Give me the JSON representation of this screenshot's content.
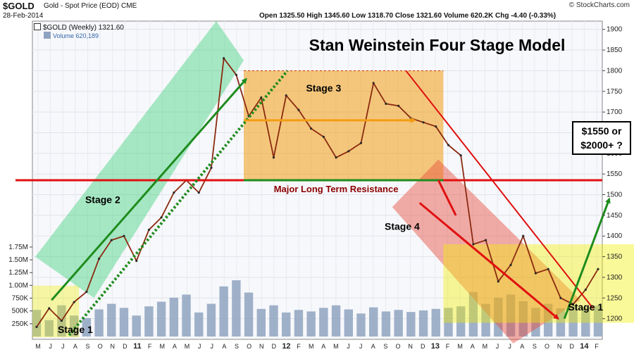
{
  "header": {
    "symbol": "$GOLD",
    "description": "Gold - Spot Price (EOD)  CME",
    "date": "28-Feb-2014",
    "ohlc": "Open 1325.50  High 1345.60  Low 1318.70  Close 1321.60  Volume 620.2K  Chg -4.40 (-0.33%)",
    "credit": "© StockCharts.com",
    "legend_price": "$GOLD (Weekly) 1321.60",
    "legend_volume": "Volume 620,189"
  },
  "colors": {
    "stage_green": "#2ecc71",
    "stage_orange": "#f39c12",
    "stage_red": "#e74c3c",
    "stage_yellow": "#f2f000",
    "resistance": "#e01010",
    "arrow_green": "#1e8c1e",
    "volume": "#8fa3c0"
  },
  "chart_data": {
    "type": "line",
    "title": "Stan Weinstein Four Stage Model",
    "xlabel": "",
    "ylabel": "",
    "ylim": [
      1150,
      1920
    ],
    "volume_ylim": [
      0,
      1900
    ],
    "y_ticks": [
      1200,
      1250,
      1300,
      1350,
      1400,
      1450,
      1500,
      1550,
      1600,
      1650,
      1700,
      1750,
      1800,
      1850,
      1900
    ],
    "y_tick_labels": [
      "1200",
      "1250",
      "1300",
      "1350",
      "1400",
      "1450",
      "1500",
      "1550",
      "1600",
      "1650",
      "1700",
      "1750",
      "1800",
      "1850",
      "1900"
    ],
    "volume_ticks": [
      250,
      500,
      750,
      1000,
      1250,
      1500,
      1750
    ],
    "volume_tick_labels": [
      "250K",
      "500K",
      "750K",
      "1.00M",
      "1.25M",
      "1.50M",
      "1.75M"
    ],
    "x_ticks": [
      "M",
      "J",
      "J",
      "A",
      "S",
      "O",
      "N",
      "D",
      "11",
      "F",
      "M",
      "A",
      "M",
      "J",
      "J",
      "A",
      "S",
      "O",
      "N",
      "D",
      "12",
      "F",
      "M",
      "A",
      "M",
      "J",
      "J",
      "A",
      "S",
      "O",
      "N",
      "D",
      "13",
      "F",
      "M",
      "A",
      "M",
      "J",
      "J",
      "A",
      "S",
      "O",
      "N",
      "D",
      "14",
      "F"
    ],
    "x_tick_bold": [
      "11",
      "12",
      "13",
      "14"
    ],
    "series": [
      {
        "key": "price",
        "x": [
          0,
          1,
          2,
          3,
          4,
          5,
          6,
          7,
          8,
          9,
          10,
          11,
          12,
          13,
          14,
          15,
          16,
          17,
          18,
          19,
          20,
          21,
          22,
          23,
          24,
          25,
          26,
          27,
          28,
          29,
          30,
          31,
          32,
          33,
          34,
          35,
          36,
          37,
          38,
          39,
          40,
          41,
          42,
          43,
          44,
          45
        ],
        "values": [
          1180,
          1225,
          1195,
          1240,
          1265,
          1345,
          1390,
          1400,
          1340,
          1415,
          1445,
          1505,
          1535,
          1505,
          1565,
          1830,
          1790,
          1690,
          1735,
          1590,
          1740,
          1705,
          1660,
          1640,
          1590,
          1605,
          1625,
          1770,
          1720,
          1715,
          1685,
          1675,
          1665,
          1620,
          1595,
          1380,
          1390,
          1290,
          1330,
          1400,
          1310,
          1320,
          1250,
          1235,
          1270,
          1320
        ]
      }
    ],
    "volume": [
      520,
      320,
      610,
      410,
      360,
      530,
      640,
      560,
      410,
      590,
      680,
      760,
      820,
      470,
      640,
      980,
      1100,
      860,
      540,
      610,
      470,
      520,
      490,
      560,
      610,
      530,
      450,
      570,
      490,
      520,
      480,
      510,
      540,
      560,
      590,
      870,
      640,
      760,
      820,
      690,
      560,
      640,
      550,
      610,
      570,
      600
    ],
    "annotations": [
      {
        "text": "Stage 1",
        "kind": "stage"
      },
      {
        "text": "Stage 2",
        "kind": "stage"
      },
      {
        "text": "Stage 3",
        "kind": "stage"
      },
      {
        "text": "Stage 4",
        "kind": "stage"
      },
      {
        "text": "Stage 1",
        "kind": "stage"
      },
      {
        "text": "Major Long Term Resistance",
        "kind": "label",
        "y": 1535
      },
      {
        "text": "$1550 or",
        "kind": "callout"
      },
      {
        "text": "$2000+ ?",
        "kind": "callout"
      }
    ]
  }
}
